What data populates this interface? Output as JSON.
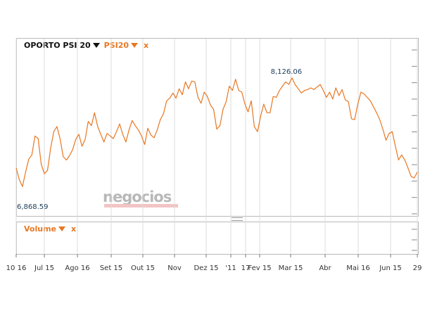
{
  "header": {
    "index_name": "OPORTO PSI 20",
    "series_name": "PSI20",
    "close_glyph": "x"
  },
  "volume_panel": {
    "label": "Volume",
    "close_glyph": "x"
  },
  "watermark": {
    "text": "negocios"
  },
  "colors": {
    "line": "#e87722",
    "accent": "#e87722",
    "grid": "#dddddd",
    "border": "#b9b9b9",
    "value_label": "#1b3b5a"
  },
  "chart_data": {
    "type": "line",
    "title": "",
    "xlabel": "",
    "ylabel": "",
    "ylim": [
      6740,
      8460
    ],
    "grid": true,
    "max_label": "8,126.06",
    "min_label": "6,868.59",
    "x_ticks": [
      "10 16",
      "Jul 15",
      "Ago 16",
      "Set 15",
      "Out 15",
      "Nov",
      "Dez 15",
      "'11",
      "17",
      "Fev 15",
      "Mar 15",
      "Abr",
      "Mai 16",
      "Jun 15",
      "29"
    ],
    "series": [
      {
        "values": [
          7075,
          6940,
          6860,
          7030,
          7180,
          7230,
          7450,
          7420,
          7120,
          7010,
          7050,
          7310,
          7500,
          7560,
          7420,
          7210,
          7170,
          7220,
          7290,
          7410,
          7470,
          7330,
          7410,
          7620,
          7570,
          7720,
          7560,
          7470,
          7380,
          7480,
          7450,
          7420,
          7500,
          7590,
          7470,
          7380,
          7520,
          7630,
          7570,
          7520,
          7450,
          7350,
          7540,
          7460,
          7430,
          7520,
          7640,
          7710,
          7860,
          7890,
          7950,
          7890,
          8000,
          7930,
          8080,
          8000,
          8090,
          8080,
          7900,
          7830,
          7960,
          7910,
          7810,
          7760,
          7530,
          7570,
          7760,
          7850,
          8030,
          7980,
          8110,
          7980,
          7960,
          7820,
          7730,
          7860,
          7560,
          7500,
          7680,
          7820,
          7720,
          7720,
          7910,
          7900,
          7980,
          8030,
          8080,
          8050,
          8126,
          8050,
          8000,
          7950,
          7980,
          7990,
          8010,
          7990,
          8020,
          8050,
          7980,
          7900,
          7960,
          7880,
          8010,
          7920,
          7990,
          7870,
          7850,
          7650,
          7640,
          7820,
          7960,
          7940,
          7900,
          7860,
          7790,
          7720,
          7640,
          7530,
          7400,
          7480,
          7500,
          7330,
          7170,
          7230,
          7170,
          7080,
          6980,
          6960,
          7030
        ]
      }
    ]
  }
}
